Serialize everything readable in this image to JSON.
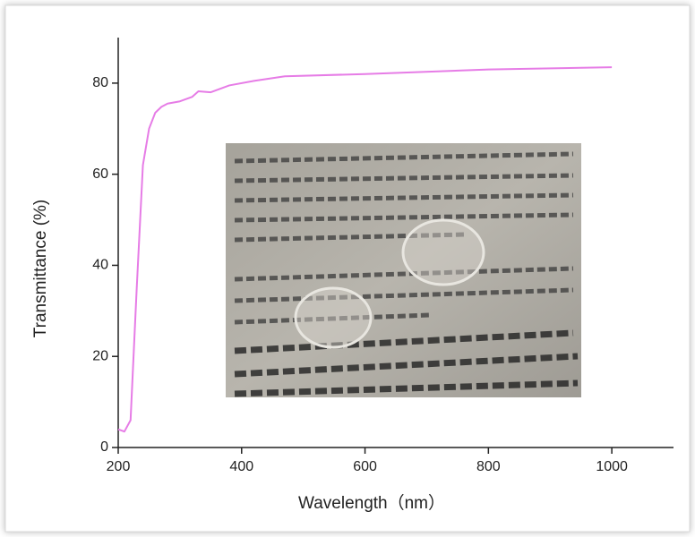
{
  "chart_data": {
    "type": "line",
    "xlabel": "Wavelength（nm）",
    "ylabel": "Transmittance (%)",
    "x": [
      200,
      210,
      220,
      230,
      240,
      250,
      260,
      270,
      280,
      300,
      320,
      330,
      350,
      380,
      420,
      470,
      600,
      800,
      1000
    ],
    "values": [
      4,
      3.5,
      6,
      35,
      62,
      70,
      73.5,
      74.8,
      75.5,
      76,
      77,
      78.2,
      78,
      79.5,
      80.5,
      81.5,
      82,
      83,
      83.5
    ],
    "color": "#e67ce6",
    "xlim": [
      200,
      1100
    ],
    "xticks": [
      200,
      400,
      600,
      800,
      1000
    ],
    "ylim": [
      0,
      90
    ],
    "yticks": [
      0,
      20,
      40,
      60,
      80
    ],
    "grid": false
  }
}
